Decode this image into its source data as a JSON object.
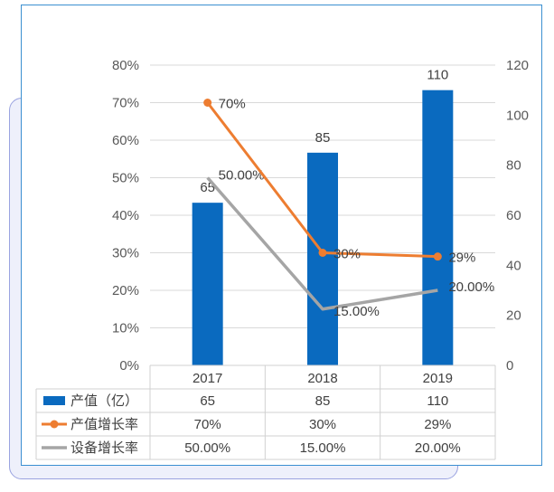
{
  "colors": {
    "bar": "#0a6abf",
    "growth": "#ed7d31",
    "equipment": "#a5a5a5",
    "grid": "#d9d9d9",
    "frame": "#3b8fd1"
  },
  "chart_data": {
    "type": "bar",
    "categories": [
      "2017",
      "2018",
      "2019"
    ],
    "series": [
      {
        "name": "产值（亿）",
        "type": "bar",
        "axis": "right",
        "values": [
          65,
          85,
          110
        ],
        "labels": [
          "65",
          "85",
          "110"
        ]
      },
      {
        "name": "产值增长率",
        "type": "line",
        "axis": "left",
        "values": [
          70,
          30,
          29
        ],
        "labels": [
          "70%",
          "30%",
          "29%"
        ],
        "marker": "circle"
      },
      {
        "name": "设备增长率",
        "type": "line",
        "axis": "left",
        "values": [
          50,
          15,
          20
        ],
        "labels": [
          "50.00%",
          "15.00%",
          "20.00%"
        ]
      }
    ],
    "y_left": {
      "ticks": [
        "0%",
        "10%",
        "20%",
        "30%",
        "40%",
        "50%",
        "60%",
        "70%",
        "80%"
      ],
      "range": [
        0,
        80
      ]
    },
    "y_right": {
      "ticks": [
        "0",
        "20",
        "40",
        "60",
        "80",
        "100",
        "120"
      ],
      "range": [
        0,
        120
      ]
    },
    "grid": true,
    "data_table": {
      "rows": [
        {
          "legend": "产值（亿）",
          "cells": [
            "65",
            "85",
            "110"
          ]
        },
        {
          "legend": "产值增长率",
          "cells": [
            "70%",
            "30%",
            "29%"
          ]
        },
        {
          "legend": "设备增长率",
          "cells": [
            "50.00%",
            "15.00%",
            "20.00%"
          ]
        }
      ]
    }
  }
}
